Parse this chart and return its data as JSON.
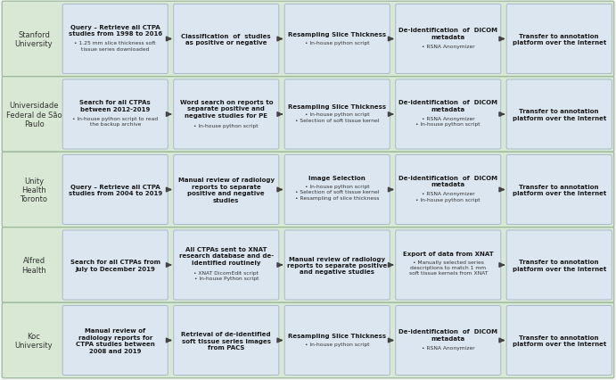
{
  "rows": [
    {
      "label": "Stanford\nUniversity",
      "boxes": [
        {
          "bold": "Query – Retrieve all CTPA\nstudies from 1998 to 2016",
          "body": "• 1.25 mm slice thickness soft\ntissue series downloaded"
        },
        {
          "bold": "Classification  of  studies\nas positive or negative",
          "body": ""
        },
        {
          "bold": "Resampling Slice Thickness",
          "body": "• In-house python script"
        },
        {
          "bold": "De-identification  of  DICOM\nmetadata",
          "body": "• RSNA Anonymizer"
        },
        {
          "bold": "Transfer to annotation\nplatform over the Internet",
          "body": ""
        }
      ]
    },
    {
      "label": "Universidade\nFederal de São\nPaulo",
      "boxes": [
        {
          "bold": "Search for all CTPAs\nbetween 2012-2019",
          "body": "• In-house python script to read\nthe backup archive"
        },
        {
          "bold": "Word search on reports to\nseparate positive and\nnegative studies for PE",
          "body": "• In-house python script"
        },
        {
          "bold": "Resampling Slice Thickness",
          "body": "• In-house python script\n• Selection of soft tissue kernel"
        },
        {
          "bold": "De-identification  of  DICOM\nmetadata",
          "body": "• RSNA Anonymizer\n• In-house python script"
        },
        {
          "bold": "Transfer to annotation\nplatform over the Internet",
          "body": ""
        }
      ]
    },
    {
      "label": "Unity\nHealth\nToronto",
      "boxes": [
        {
          "bold": "Query – Retrieve all CTPA\nstudies from 2004 to 2019",
          "body": ""
        },
        {
          "bold": "Manual review of radiology\nreports to separate\npositive and negative\nstudies",
          "body": ""
        },
        {
          "bold": "Image Selection",
          "body": "• In-house python script\n• Selection of soft tissue kernel\n• Resampling of slice thickness"
        },
        {
          "bold": "De-identification  of  DICOM\nmetadata",
          "body": "• RSNA Anonymizer\n• In-house python script"
        },
        {
          "bold": "Transfer to annotation\nplatform over the Internet",
          "body": ""
        }
      ]
    },
    {
      "label": "Alfred\nHealth",
      "boxes": [
        {
          "bold": "Search for all CTPAs from\nJuly to December 2019",
          "body": ""
        },
        {
          "bold": "All CTPAs sent to XNAT\nresearch database and de-\nidentified routinely",
          "body": "• XNAT DicomEdit script\n• In-house Python script"
        },
        {
          "bold": "Manual review of radiology\nreports to separate positive\nand negative studies",
          "body": ""
        },
        {
          "bold": "Export of data from XNAT",
          "body": "• Manually selected series\ndescriptions to match 1 mm\nsoft tissue kernels from XNAT"
        },
        {
          "bold": "Transfer to annotation\nplatform over the Internet",
          "body": ""
        }
      ]
    },
    {
      "label": "Koc\nUniversity",
      "boxes": [
        {
          "bold": "Manual review of\nradiology reports for\nCTPA studies between\n2008 and 2019",
          "body": ""
        },
        {
          "bold": "Retrieval of de-identified\nsoft tissue series images\nfrom PACS",
          "body": ""
        },
        {
          "bold": "Resampling Slice Thickness",
          "body": "• In-house python script"
        },
        {
          "bold": "De-identification  of  DICOM\nmetadata",
          "body": "• RSNA Anonymizer"
        },
        {
          "bold": "Transfer to annotation\nplatform over the Internet",
          "body": ""
        }
      ]
    }
  ],
  "box_fill": "#dce6f1",
  "box_edge": "#a8b8cc",
  "label_color": "#333333",
  "text_bold_color": "#1a1a1a",
  "text_body_color": "#333333",
  "arrow_color": "#444444",
  "outer_bg": "#f5f5f5",
  "row_bg": "#d9e8d4",
  "row_border": "#9ab89a",
  "bold_fontsize": 5.0,
  "body_fontsize": 4.3,
  "label_fontsize": 6.0
}
